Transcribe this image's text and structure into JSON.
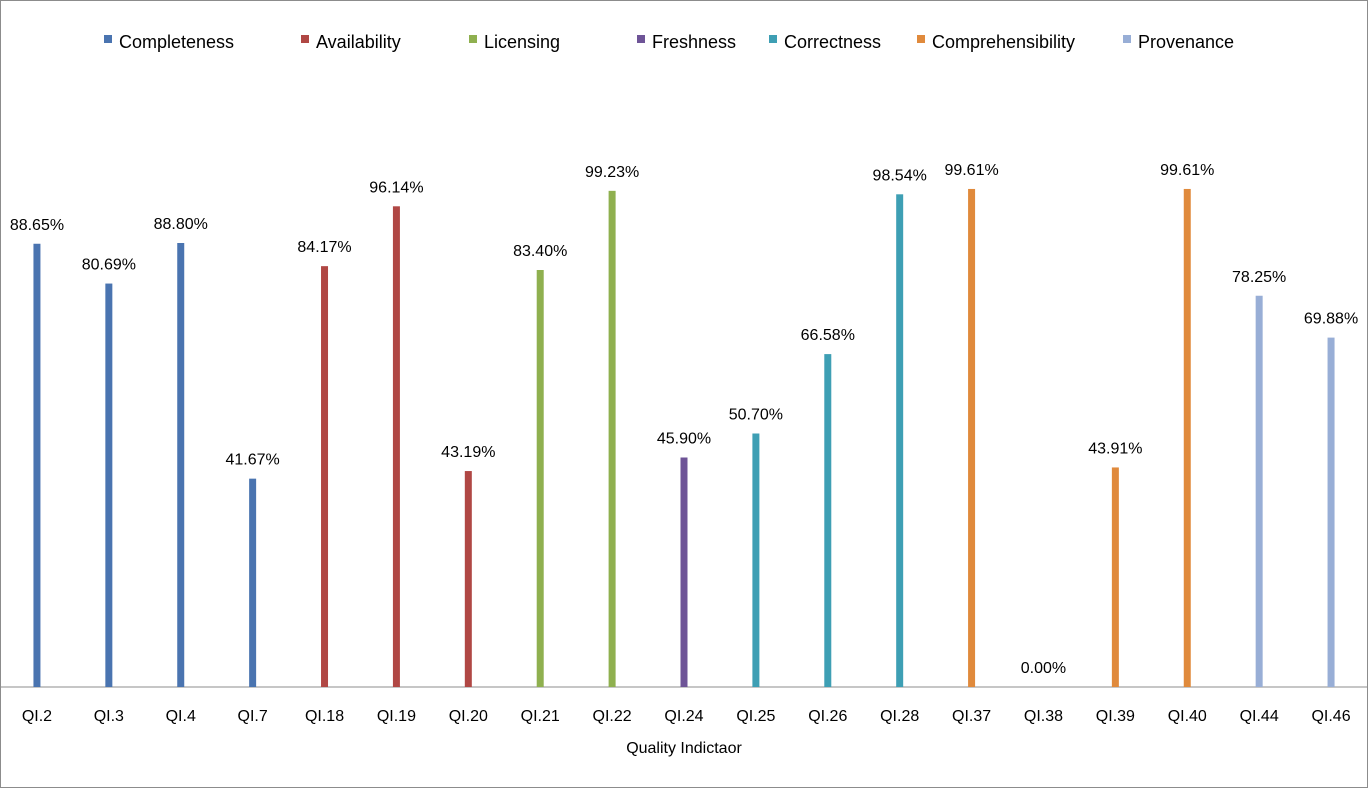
{
  "chart_data": {
    "type": "bar",
    "xlabel": "Quality Indictaor",
    "ylabel": "",
    "ylim": [
      0,
      100
    ],
    "grid": false,
    "legend_position": "top",
    "legend": [
      {
        "name": "Completeness",
        "color": "#4a74b0"
      },
      {
        "name": "Availability",
        "color": "#b04744"
      },
      {
        "name": "Licensing",
        "color": "#8fb04f"
      },
      {
        "name": "Freshness",
        "color": "#6e5497"
      },
      {
        "name": "Correctness",
        "color": "#3e9fb4"
      },
      {
        "name": "Comprehensibility",
        "color": "#e08a3c"
      },
      {
        "name": "Provenance",
        "color": "#98aed6"
      }
    ],
    "categories": [
      "QI.2",
      "QI.3",
      "QI.4",
      "QI.7",
      "QI.18",
      "QI.19",
      "QI.20",
      "QI.21",
      "QI.22",
      "QI.24",
      "QI.25",
      "QI.26",
      "QI.28",
      "QI.37",
      "QI.38",
      "QI.39",
      "QI.40",
      "QI.44",
      "QI.46"
    ],
    "bars": [
      {
        "category": "QI.2",
        "series": "Completeness",
        "value": 88.65,
        "label": "88.65%"
      },
      {
        "category": "QI.3",
        "series": "Completeness",
        "value": 80.69,
        "label": "80.69%"
      },
      {
        "category": "QI.4",
        "series": "Completeness",
        "value": 88.8,
        "label": "88.80%"
      },
      {
        "category": "QI.7",
        "series": "Completeness",
        "value": 41.67,
        "label": "41.67%"
      },
      {
        "category": "QI.18",
        "series": "Availability",
        "value": 84.17,
        "label": "84.17%"
      },
      {
        "category": "QI.19",
        "series": "Availability",
        "value": 96.14,
        "label": "96.14%"
      },
      {
        "category": "QI.20",
        "series": "Availability",
        "value": 43.19,
        "label": "43.19%"
      },
      {
        "category": "QI.21",
        "series": "Licensing",
        "value": 83.4,
        "label": "83.40%"
      },
      {
        "category": "QI.22",
        "series": "Licensing",
        "value": 99.23,
        "label": "99.23%"
      },
      {
        "category": "QI.24",
        "series": "Freshness",
        "value": 45.9,
        "label": "45.90%"
      },
      {
        "category": "QI.25",
        "series": "Correctness",
        "value": 50.7,
        "label": "50.70%"
      },
      {
        "category": "QI.26",
        "series": "Correctness",
        "value": 66.58,
        "label": "66.58%"
      },
      {
        "category": "QI.28",
        "series": "Correctness",
        "value": 98.54,
        "label": "98.54%"
      },
      {
        "category": "QI.37",
        "series": "Comprehensibility",
        "value": 99.61,
        "label": "99.61%"
      },
      {
        "category": "QI.38",
        "series": "Comprehensibility",
        "value": 0.0,
        "label": "0.00%"
      },
      {
        "category": "QI.39",
        "series": "Comprehensibility",
        "value": 43.91,
        "label": "43.91%"
      },
      {
        "category": "QI.40",
        "series": "Comprehensibility",
        "value": 99.61,
        "label": "99.61%"
      },
      {
        "category": "QI.44",
        "series": "Provenance",
        "value": 78.25,
        "label": "78.25%"
      },
      {
        "category": "QI.46",
        "series": "Provenance",
        "value": 69.88,
        "label": "69.88%"
      }
    ]
  }
}
